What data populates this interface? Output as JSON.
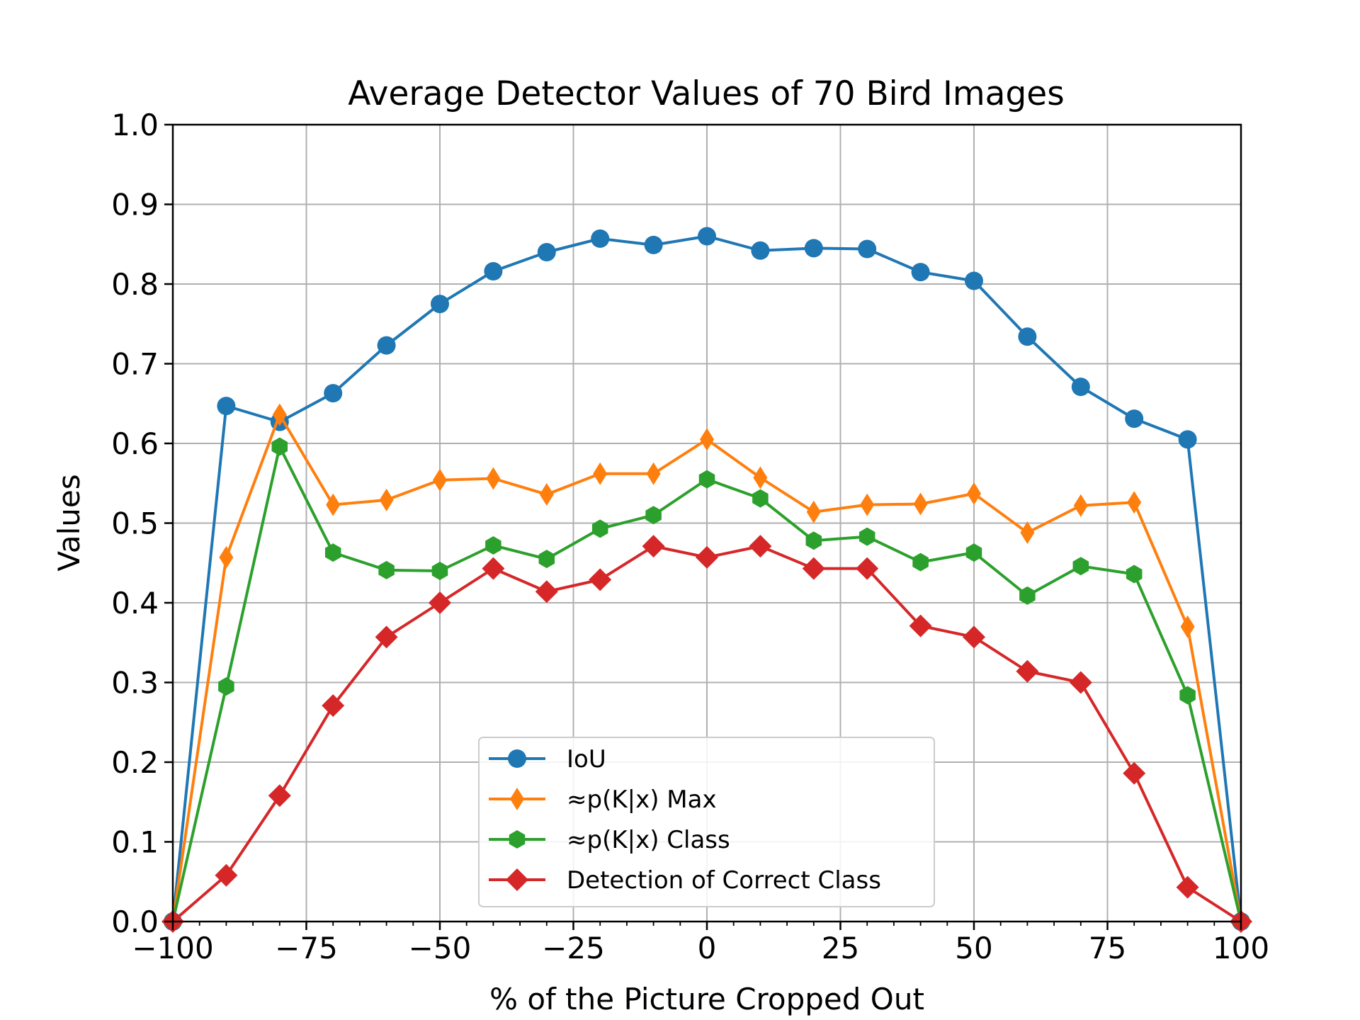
{
  "chart_data": {
    "type": "line",
    "title": "Average Detector Values of 70 Bird Images",
    "xlabel": "% of the Picture Cropped Out",
    "ylabel": "Values",
    "xlim": [
      -100,
      100
    ],
    "ylim": [
      0,
      1.0
    ],
    "x_ticks": [
      -100,
      -75,
      -50,
      -25,
      0,
      25,
      50,
      75,
      100
    ],
    "x_tick_labels": [
      "−100",
      "−75",
      "−50",
      "−25",
      "0",
      "25",
      "50",
      "75",
      "100"
    ],
    "y_ticks": [
      0,
      0.1,
      0.2,
      0.3,
      0.4,
      0.5,
      0.6,
      0.7,
      0.8,
      0.9,
      1.0
    ],
    "y_tick_labels": [
      "0.0",
      "0.1",
      "0.2",
      "0.3",
      "0.4",
      "0.5",
      "0.6",
      "0.7",
      "0.8",
      "0.9",
      "1.0"
    ],
    "grid": true,
    "legend_position": "bottom-center",
    "x": [
      -100,
      -90,
      -80,
      -70,
      -60,
      -50,
      -40,
      -30,
      -20,
      -10,
      0,
      10,
      20,
      30,
      40,
      50,
      60,
      70,
      80,
      90,
      100
    ],
    "series": [
      {
        "name": "IoU",
        "color": "#1f77b4",
        "marker": "circle",
        "values": [
          0.0,
          0.647,
          0.627,
          0.663,
          0.723,
          0.775,
          0.816,
          0.84,
          0.857,
          0.849,
          0.86,
          0.842,
          0.845,
          0.844,
          0.815,
          0.804,
          0.734,
          0.671,
          0.631,
          0.605,
          0.0
        ]
      },
      {
        "name": "≈p(K|x) Max",
        "color": "#ff7f0e",
        "marker": "thin-diamond",
        "values": [
          0.0,
          0.457,
          0.636,
          0.523,
          0.529,
          0.554,
          0.556,
          0.536,
          0.562,
          0.562,
          0.605,
          0.557,
          0.514,
          0.523,
          0.524,
          0.537,
          0.488,
          0.522,
          0.526,
          0.37,
          0.0
        ]
      },
      {
        "name": "≈p(K|x) Class",
        "color": "#2ca02c",
        "marker": "hexagon",
        "values": [
          0.0,
          0.295,
          0.596,
          0.463,
          0.441,
          0.44,
          0.472,
          0.455,
          0.493,
          0.51,
          0.555,
          0.531,
          0.478,
          0.483,
          0.451,
          0.463,
          0.409,
          0.446,
          0.436,
          0.284,
          0.0
        ]
      },
      {
        "name": "Detection of Correct Class",
        "color": "#d62728",
        "marker": "diamond",
        "values": [
          0.0,
          0.058,
          0.158,
          0.271,
          0.357,
          0.4,
          0.443,
          0.414,
          0.429,
          0.471,
          0.457,
          0.471,
          0.443,
          0.443,
          0.371,
          0.357,
          0.314,
          0.3,
          0.186,
          0.043,
          0.0
        ]
      }
    ]
  }
}
